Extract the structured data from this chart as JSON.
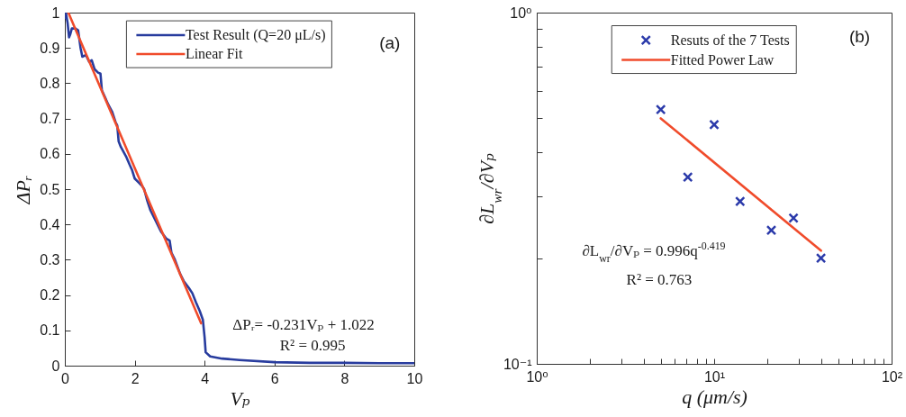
{
  "chart_data": [
    {
      "type": "line",
      "xlabel": "Vₚ",
      "ylabel": "ΔPᵣ",
      "xlim": [
        0,
        10
      ],
      "ylim": [
        0,
        1
      ],
      "xticks": [
        0,
        2,
        4,
        6,
        8,
        10
      ],
      "yticks": [
        0,
        0.1,
        0.2,
        0.3,
        0.4,
        0.5,
        0.6,
        0.7,
        0.8,
        0.9,
        1
      ],
      "grid": false,
      "legend": "top right",
      "annotations": [
        "(a)",
        "ΔPᵣ= -0.231Vₚ + 1.022",
        "R² = 0.995"
      ],
      "series": [
        {
          "name": "Test Result (Q=20 μL/s)",
          "color": "#283c9e",
          "x": [
            0,
            0.03,
            0.08,
            0.12,
            0.16,
            0.2,
            0.3,
            0.38,
            0.45,
            0.5,
            0.6,
            0.7,
            0.77,
            0.85,
            0.95,
            1.02,
            1.06,
            1.15,
            1.24,
            1.35,
            1.45,
            1.5,
            1.54,
            1.6,
            1.75,
            1.85,
            1.92,
            2.0,
            2.1,
            2.2,
            2.27,
            2.35,
            2.45,
            2.6,
            2.75,
            2.9,
            3.0,
            3.05,
            3.15,
            3.3,
            3.4,
            3.55,
            3.65,
            3.75,
            3.86,
            3.95,
            4.0,
            4.03,
            4.16,
            4.5,
            5.0,
            6.0,
            7.0,
            8.0,
            9.0,
            10.0
          ],
          "values": [
            0.985,
            1.0,
            0.97,
            0.93,
            0.94,
            0.955,
            0.955,
            0.95,
            0.9,
            0.875,
            0.88,
            0.86,
            0.865,
            0.84,
            0.83,
            0.827,
            0.78,
            0.76,
            0.74,
            0.72,
            0.69,
            0.68,
            0.635,
            0.62,
            0.593,
            0.57,
            0.555,
            0.53,
            0.52,
            0.51,
            0.5,
            0.47,
            0.44,
            0.41,
            0.38,
            0.36,
            0.354,
            0.32,
            0.3,
            0.26,
            0.24,
            0.22,
            0.205,
            0.18,
            0.155,
            0.13,
            0.08,
            0.038,
            0.026,
            0.02,
            0.016,
            0.01,
            0.008,
            0.008,
            0.007,
            0.007
          ]
        },
        {
          "name": "Linear Fit",
          "color": "#f04b2b",
          "x": [
            0.1,
            3.9
          ],
          "values": [
            1.0,
            0.12
          ]
        }
      ]
    },
    {
      "type": "scatter",
      "xlabel": "q (μm/s)",
      "ylabel": "∂L$_{wr}$/∂Vₚ",
      "log": "xy",
      "xlim": [
        1,
        100
      ],
      "ylim": [
        0.1,
        1
      ],
      "xticks": [
        {
          "value": 1,
          "label": "10⁰"
        },
        {
          "value": 2,
          "label": null
        },
        {
          "value": 3,
          "label": null
        },
        {
          "value": 4,
          "label": null
        },
        {
          "value": 5,
          "label": null
        },
        {
          "value": 6,
          "label": null
        },
        {
          "value": 7,
          "label": null
        },
        {
          "value": 8,
          "label": null
        },
        {
          "value": 9,
          "label": null
        },
        {
          "value": 10,
          "label": "10¹"
        },
        {
          "value": 20,
          "label": null
        },
        {
          "value": 30,
          "label": null
        },
        {
          "value": 40,
          "label": null
        },
        {
          "value": 50,
          "label": null
        },
        {
          "value": 60,
          "label": null
        },
        {
          "value": 70,
          "label": null
        },
        {
          "value": 80,
          "label": null
        },
        {
          "value": 90,
          "label": null
        },
        {
          "value": 100,
          "label": "10²"
        }
      ],
      "yticks": [
        {
          "value": 0.1,
          "label": "10⁻¹"
        },
        {
          "value": 0.2,
          "label": null
        },
        {
          "value": 0.3,
          "label": null
        },
        {
          "value": 0.4,
          "label": null
        },
        {
          "value": 0.5,
          "label": null
        },
        {
          "value": 0.6,
          "label": null
        },
        {
          "value": 0.7,
          "label": null
        },
        {
          "value": 0.8,
          "label": null
        },
        {
          "value": 0.9,
          "label": null
        },
        {
          "value": 1,
          "label": "10⁰"
        }
      ],
      "grid": false,
      "legend": "top right",
      "annotations": [
        "(b)",
        "∂L$_{wr}$/∂Vₚ = 0.996q$^{-0.419}$",
        "R² = 0.763"
      ],
      "series": [
        {
          "name": "Resuts of the 7 Tests",
          "color": "#2b3aaa",
          "marker": "cross",
          "x": [
            5,
            7.1,
            10,
            14,
            21,
            28,
            40
          ],
          "values": [
            0.53,
            0.34,
            0.48,
            0.29,
            0.24,
            0.26,
            0.2
          ]
        },
        {
          "name": "Fitted Power Law",
          "type": "line",
          "color": "#f04b2b",
          "x": [
            5,
            40
          ],
          "values": [
            0.5,
            0.21
          ]
        }
      ]
    }
  ]
}
